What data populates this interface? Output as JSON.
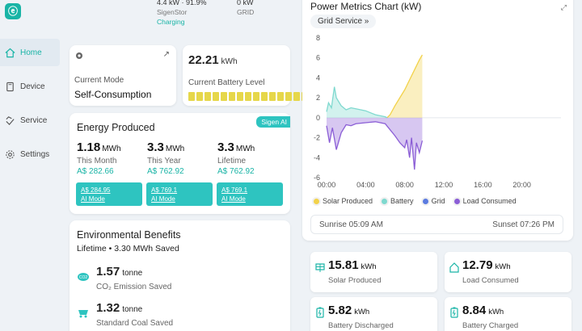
{
  "sidebar": {
    "items": [
      {
        "label": "Home",
        "icon": "home-icon"
      },
      {
        "label": "Device",
        "icon": "device-icon"
      },
      {
        "label": "Service",
        "icon": "service-icon"
      },
      {
        "label": "Settings",
        "icon": "settings-icon"
      }
    ]
  },
  "top": {
    "left": {
      "value": "4.4 kW · 91.9%",
      "name": "SigenStor",
      "status": "Charging"
    },
    "right": {
      "value": "0 kW",
      "name": "GRID"
    }
  },
  "mode": {
    "label": "Current Mode",
    "value": "Self-Consumption"
  },
  "battery": {
    "value": "22.21",
    "unit": "kWh",
    "label": "Current Battery Level",
    "level_segments": 15
  },
  "energy": {
    "title": "Energy Produced",
    "tag": "Sigen AI",
    "cols": [
      {
        "value": "1.18",
        "unit": "MWh",
        "period": "This Month",
        "money": "A$ 282.66",
        "ai_money": "A$ 284.95",
        "ai_label": "AI Mode"
      },
      {
        "value": "3.3",
        "unit": "MWh",
        "period": "This Year",
        "money": "A$ 762.92",
        "ai_money": "A$ 769.1",
        "ai_label": "AI Mode"
      },
      {
        "value": "3.3",
        "unit": "MWh",
        "period": "Lifetime",
        "money": "A$ 762.92",
        "ai_money": "A$ 769.1",
        "ai_label": "AI Mode"
      }
    ]
  },
  "env": {
    "title": "Environmental Benefits",
    "lifetime": "Lifetime  • 3.30 MWh Saved",
    "rows": [
      {
        "value": "1.57",
        "unit": "tonne",
        "desc": "CO₂ Emission Saved"
      },
      {
        "value": "1.32",
        "unit": "tonne",
        "desc": "Standard Coal Saved"
      }
    ]
  },
  "chart": {
    "title": "Power Metrics Chart (kW)",
    "button": "Grid Service",
    "sunrise": "Sunrise 05:09 AM",
    "sunset": "Sunset 07:26 PM",
    "legend": [
      {
        "label": "Solar Produced",
        "color": "#f2d24a"
      },
      {
        "label": "Battery",
        "color": "#7fd9cf"
      },
      {
        "label": "Grid",
        "color": "#5b7be0"
      },
      {
        "label": "Load Consumed",
        "color": "#8b5ed6"
      }
    ]
  },
  "chart_data": {
    "type": "area",
    "title": "Power Metrics Chart (kW)",
    "x_ticks": [
      "00:00",
      "04:00",
      "08:00",
      "12:00",
      "16:00",
      "20:00"
    ],
    "y_ticks": [
      8,
      6,
      4,
      2,
      0,
      -2,
      -4,
      -6
    ],
    "ylim": [
      -6,
      8
    ],
    "xlim": [
      0,
      24
    ],
    "series": [
      {
        "name": "Solar Produced",
        "color": "#f2d24a",
        "x": [
          6.2,
          6.5,
          7,
          7.5,
          8,
          8.5,
          9,
          9.5,
          9.8
        ],
        "y": [
          0,
          0.3,
          1.2,
          2.0,
          2.8,
          3.8,
          4.8,
          5.8,
          6.3
        ]
      },
      {
        "name": "Battery",
        "color": "#7fd9cf",
        "x": [
          0,
          0.2,
          0.5,
          0.8,
          1.0,
          1.5,
          2.0,
          2.5,
          3.0,
          4.0,
          4.5,
          5.0,
          5.5,
          6.0,
          6.2
        ],
        "y": [
          0.6,
          1.5,
          1.0,
          3.1,
          2.0,
          1.2,
          0.8,
          1.0,
          0.9,
          0.7,
          0.5,
          0.3,
          0.2,
          0.1,
          0
        ]
      },
      {
        "name": "Load Consumed",
        "color": "#8b5ed6",
        "x": [
          0,
          0.3,
          0.6,
          1.0,
          1.5,
          2.0,
          2.5,
          3,
          4,
          5,
          6,
          6.5,
          7,
          7.5,
          8,
          8.2,
          8.5,
          8.7,
          9.0,
          9.2,
          9.5,
          9.8
        ],
        "y": [
          -0.8,
          -2.5,
          -1.0,
          -3.2,
          -1.5,
          -0.7,
          -0.8,
          -0.6,
          -0.5,
          -0.4,
          -0.6,
          -1.2,
          -1.8,
          -2.5,
          -3.0,
          -2.2,
          -4.0,
          -2.0,
          -5.2,
          -2.5,
          -3.5,
          -2.3
        ]
      }
    ],
    "x_unit": "time",
    "y_unit": "kW",
    "grid": false
  },
  "stats": [
    {
      "value": "15.81",
      "unit": "kWh",
      "label": "Solar Produced"
    },
    {
      "value": "12.79",
      "unit": "kWh",
      "label": "Load Consumed"
    },
    {
      "value": "5.82",
      "unit": "kWh",
      "label": "Battery Discharged"
    },
    {
      "value": "8.84",
      "unit": "kWh",
      "label": "Battery Charged"
    }
  ]
}
